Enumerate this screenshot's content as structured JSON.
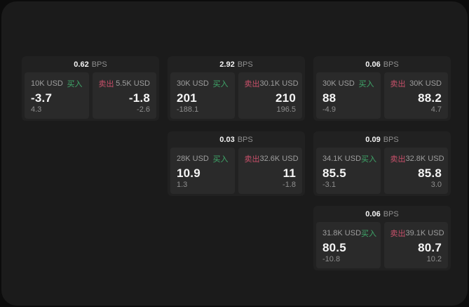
{
  "colors": {
    "backdrop": "#0c0c0c",
    "surface": "#1b1b1b",
    "card": "#212121",
    "panel": "#2a2a2a",
    "text_primary": "#f5f5f5",
    "text_muted": "#8f8f8f",
    "text_muted2": "#9e9e9e",
    "buy_green": "#3fa86a",
    "sell_red": "#c8506a"
  },
  "labels": {
    "bps": "BPS",
    "buy": "买入",
    "sell": "卖出"
  },
  "cards": [
    {
      "spread": "0.62",
      "buy": {
        "amount": "10K USD",
        "price": "-3.7",
        "change": "4.3"
      },
      "sell": {
        "amount": "5.5K USD",
        "price": "-1.8",
        "change": "-2.6"
      }
    },
    {
      "spread": "2.92",
      "buy": {
        "amount": "30K USD",
        "price": "201",
        "change": "-188.1"
      },
      "sell": {
        "amount": "30.1K USD",
        "price": "210",
        "change": "196.5"
      }
    },
    {
      "spread": "0.06",
      "buy": {
        "amount": "30K USD",
        "price": "88",
        "change": "-4.9"
      },
      "sell": {
        "amount": "30K USD",
        "price": "88.2",
        "change": "4.7"
      }
    },
    {
      "spread": "0.03",
      "buy": {
        "amount": "28K USD",
        "price": "10.9",
        "change": "1.3"
      },
      "sell": {
        "amount": "32.6K USD",
        "price": "11",
        "change": "-1.8"
      }
    },
    {
      "spread": "0.09",
      "buy": {
        "amount": "34.1K USD",
        "price": "85.5",
        "change": "-3.1"
      },
      "sell": {
        "amount": "32.8K USD",
        "price": "85.8",
        "change": "3.0"
      }
    },
    {
      "spread": "0.06",
      "buy": {
        "amount": "31.8K USD",
        "price": "80.5",
        "change": "-10.8"
      },
      "sell": {
        "amount": "39.1K USD",
        "price": "80.7",
        "change": "10.2"
      }
    }
  ]
}
